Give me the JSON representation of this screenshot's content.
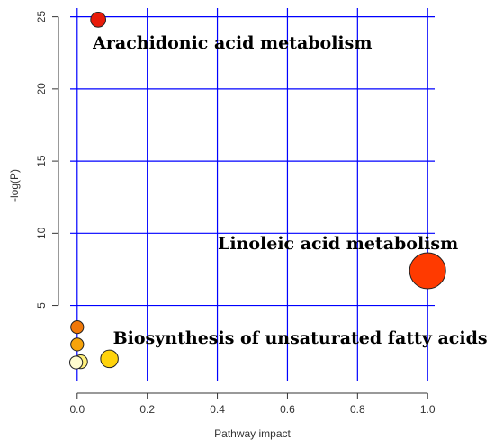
{
  "chart_data": {
    "type": "scatter",
    "title": "",
    "xlabel": "Pathway impact",
    "ylabel": "-log(P)",
    "xlim": [
      -0.02,
      1.02
    ],
    "ylim": [
      -0.2,
      25.6
    ],
    "x_ticks": [
      0.0,
      0.2,
      0.4,
      0.6,
      0.8,
      1.0
    ],
    "x_tick_labels": [
      "0.0",
      "0.2",
      "0.4",
      "0.6",
      "0.8",
      "1.0"
    ],
    "y_ticks": [
      5,
      10,
      15,
      20,
      25
    ],
    "y_tick_labels": [
      "5",
      "10",
      "15",
      "20",
      "25"
    ],
    "grid": true,
    "grid_color": "#0000ff",
    "points": [
      {
        "x": 0.06,
        "y": 24.8,
        "size": 0.05,
        "color": "#e81b0a"
      },
      {
        "x": 1.0,
        "y": 7.4,
        "size": 1.0,
        "color": "#ff3a00"
      },
      {
        "x": 0.0,
        "y": 3.5,
        "size": 0.02,
        "color": "#f07808"
      },
      {
        "x": 0.0,
        "y": 2.3,
        "size": 0.02,
        "color": "#f7a30a"
      },
      {
        "x": 0.092,
        "y": 1.3,
        "size": 0.1,
        "color": "#ffd30c"
      },
      {
        "x": 0.01,
        "y": 1.1,
        "size": 0.03,
        "color": "#fff07a"
      },
      {
        "x": -0.003,
        "y": 1.05,
        "size": 0.02,
        "color": "#fffccf"
      }
    ],
    "annotations": [
      {
        "text": "Arachidonic acid metabolism",
        "x": 0.06,
        "y": 24.8,
        "anchor": "below-right"
      },
      {
        "text": "Linoleic acid metabolism",
        "x": 1.0,
        "y": 7.4,
        "anchor": "above-left"
      },
      {
        "text": "Biosynthesis of unsaturated fatty acids",
        "x": 0.092,
        "y": 1.3,
        "anchor": "above-right"
      }
    ]
  }
}
